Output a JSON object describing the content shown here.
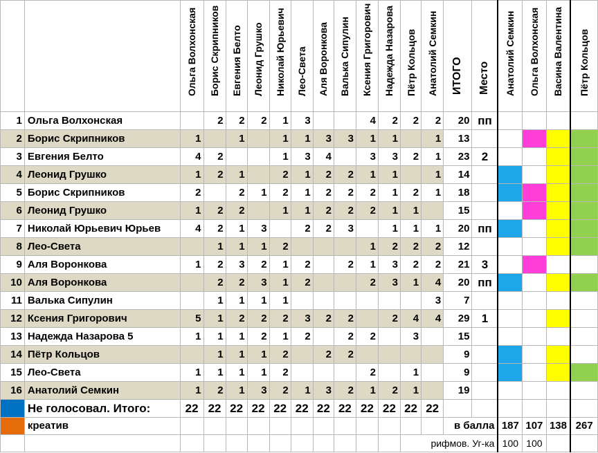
{
  "columns": [
    "Ольга Волхонская",
    "Борис Скрипников",
    "Евгения Белто",
    "Леонид Грушко",
    "Николай Юрьевич",
    "Лео-Света",
    "Аля Воронкова",
    "Валька Сипулин",
    "Ксения Григорович",
    "Надежда Назарова",
    "Пётр Кольцов",
    "Анатолий Семкин"
  ],
  "total_header": "ИТОГО",
  "place_header": "Место",
  "judges": [
    "Анатолий Семкин",
    "Ольга Волхонская",
    "Васина Валентина",
    "Пётр Кольцов"
  ],
  "rows": [
    {
      "n": "1",
      "name": "Ольга Волхонская",
      "v": [
        "",
        "2",
        "2",
        "2",
        "1",
        "3",
        "",
        "",
        "4",
        "2",
        "2",
        "2"
      ],
      "total": "20",
      "place": "пп",
      "marks": [
        "",
        "",
        "",
        ""
      ]
    },
    {
      "n": "2",
      "name": "Борис Скрипников",
      "v": [
        "1",
        "",
        "1",
        "",
        "1",
        "1",
        "3",
        "3",
        "1",
        "1",
        "",
        "1"
      ],
      "total": "13",
      "place": "",
      "marks": [
        "",
        "#ff3fd8",
        "#ffff00",
        "#92d050"
      ]
    },
    {
      "n": "3",
      "name": "Евгения Белто",
      "v": [
        "4",
        "2",
        "",
        "",
        "1",
        "3",
        "4",
        "",
        "3",
        "3",
        "2",
        "1"
      ],
      "total": "23",
      "place": "2",
      "marks": [
        "",
        "",
        "#ffff00",
        "#92d050"
      ]
    },
    {
      "n": "4",
      "name": "Леонид Грушко",
      "v": [
        "1",
        "2",
        "1",
        "",
        "2",
        "1",
        "2",
        "2",
        "1",
        "1",
        "",
        "1"
      ],
      "total": "14",
      "place": "",
      "marks": [
        "#1ea7e8",
        "",
        "#ffff00",
        "#92d050"
      ]
    },
    {
      "n": "5",
      "name": "Борис Скрипников",
      "v": [
        "2",
        "",
        "2",
        "1",
        "2",
        "1",
        "2",
        "2",
        "2",
        "1",
        "2",
        "1"
      ],
      "total": "18",
      "place": "",
      "marks": [
        "#1ea7e8",
        "#ff3fd8",
        "#ffff00",
        "#92d050"
      ]
    },
    {
      "n": "6",
      "name": "Леонид Грушко",
      "v": [
        "1",
        "2",
        "2",
        "",
        "1",
        "1",
        "2",
        "2",
        "2",
        "1",
        "1",
        ""
      ],
      "total": "15",
      "place": "",
      "marks": [
        "",
        "#ff3fd8",
        "#ffff00",
        "#92d050"
      ]
    },
    {
      "n": "7",
      "name": "Николай Юрьевич Юрьев",
      "v": [
        "4",
        "2",
        "1",
        "3",
        "",
        "2",
        "2",
        "3",
        "",
        "1",
        "1",
        "1"
      ],
      "total": "20",
      "place": "пп",
      "marks": [
        "#1ea7e8",
        "",
        "#ffff00",
        "#92d050"
      ]
    },
    {
      "n": "8",
      "name": "Лео-Света",
      "v": [
        "",
        "1",
        "1",
        "1",
        "2",
        "",
        "",
        "",
        "1",
        "2",
        "2",
        "2"
      ],
      "total": "12",
      "place": "",
      "marks": [
        "",
        "",
        "#ffff00",
        "#92d050"
      ]
    },
    {
      "n": "9",
      "name": "Аля Воронкова",
      "v": [
        "1",
        "2",
        "3",
        "2",
        "1",
        "2",
        "",
        "2",
        "1",
        "3",
        "2",
        "2"
      ],
      "total": "21",
      "place": "3",
      "marks": [
        "",
        "#ff3fd8",
        "",
        ""
      ]
    },
    {
      "n": "10",
      "name": "Аля Воронкова",
      "v": [
        "",
        "2",
        "2",
        "3",
        "1",
        "2",
        "",
        "",
        "2",
        "3",
        "1",
        "4"
      ],
      "total": "20",
      "place": "пп",
      "marks": [
        "#1ea7e8",
        "",
        "#ffff00",
        "#92d050"
      ]
    },
    {
      "n": "11",
      "name": "Валька Сипулин",
      "v": [
        "",
        "1",
        "1",
        "1",
        "1",
        "",
        "",
        "",
        "",
        "",
        "",
        "3"
      ],
      "total": "7",
      "place": "",
      "marks": [
        "",
        "",
        "",
        ""
      ]
    },
    {
      "n": "12",
      "name": "Ксения Григорович",
      "v": [
        "5",
        "1",
        "2",
        "2",
        "2",
        "3",
        "2",
        "2",
        "",
        "2",
        "4",
        "4"
      ],
      "total": "29",
      "place": "1",
      "marks": [
        "",
        "",
        "#ffff00",
        ""
      ]
    },
    {
      "n": "13",
      "name": "Надежда Назарова 5",
      "v": [
        "1",
        "1",
        "1",
        "2",
        "1",
        "2",
        "",
        "2",
        "2",
        "",
        "3",
        ""
      ],
      "total": "15",
      "place": "",
      "marks": [
        "",
        "",
        "",
        ""
      ]
    },
    {
      "n": "14",
      "name": "Пётр Кольцов",
      "v": [
        "",
        "1",
        "1",
        "1",
        "2",
        "",
        "2",
        "2",
        "",
        "",
        "",
        ""
      ],
      "total": "9",
      "place": "",
      "marks": [
        "#1ea7e8",
        "",
        "#ffff00",
        ""
      ]
    },
    {
      "n": "15",
      "name": "Лео-Света",
      "v": [
        "1",
        "1",
        "1",
        "1",
        "2",
        "",
        "",
        "",
        "2",
        "",
        "1",
        ""
      ],
      "total": "9",
      "place": "",
      "marks": [
        "#1ea7e8",
        "",
        "#ffff00",
        "#92d050"
      ]
    },
    {
      "n": "16",
      "name": "Анатолий Семкин",
      "v": [
        "1",
        "2",
        "1",
        "3",
        "2",
        "1",
        "3",
        "2",
        "1",
        "2",
        "1",
        ""
      ],
      "total": "19",
      "place": "",
      "marks": [
        "",
        "",
        "",
        ""
      ]
    }
  ],
  "legend_blue": "Не голосовал.  Итого:",
  "sum_values": [
    "22",
    "22",
    "22",
    "22",
    "22",
    "22",
    "22",
    "22",
    "22",
    "22",
    "22",
    "22"
  ],
  "legend_orange": "креатив",
  "points_label": "в балла",
  "judge_points": [
    "187",
    "107",
    "138",
    "267"
  ],
  "rifm_label": "рифмов. Уг-ка",
  "rifm_values": [
    "100",
    "100"
  ],
  "colors": {
    "shade": "#ddd9c4",
    "blue": "#1ea7e8",
    "magenta": "#ff3fd8",
    "yellow": "#ffff00",
    "green": "#92d050",
    "legend_blue": "#0070c0",
    "legend_orange": "#e46c0a"
  }
}
